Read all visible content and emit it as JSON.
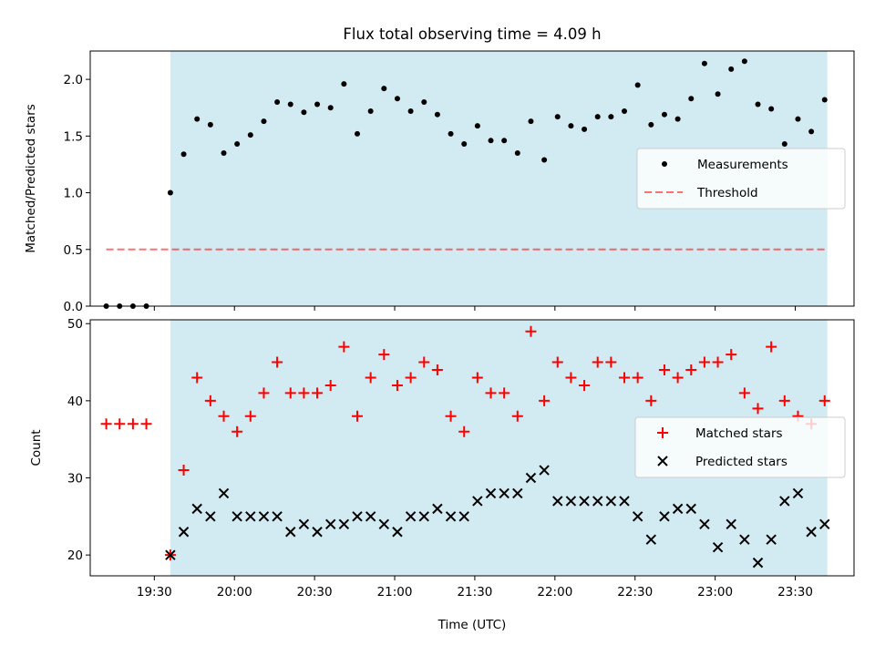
{
  "title": "Flux total observing time = 4.09 h",
  "xlabel": "Time (UTC)",
  "colors": {
    "shade": "#add8e6",
    "measurements": "#000000",
    "threshold": "#ff0000",
    "matched": "#ff0000",
    "predicted": "#000000"
  },
  "chart_data": [
    {
      "type": "scatter",
      "ylabel": "Matched/Predicted stars",
      "ylim": [
        0,
        2.25
      ],
      "yticks": [
        "0.0",
        "0.5",
        "1.0",
        "1.5",
        "2.0"
      ],
      "legend_position": "center-right",
      "shaded_interval": [
        "19:36",
        "23:42"
      ],
      "series": [
        {
          "name": "Measurements",
          "marker": "dot",
          "times": [
            "19:12",
            "19:17",
            "19:22",
            "19:27",
            "19:36",
            "19:41",
            "19:46",
            "19:51",
            "19:56",
            "20:01",
            "20:06",
            "20:11",
            "20:16",
            "20:21",
            "20:26",
            "20:31",
            "20:36",
            "20:41",
            "20:46",
            "20:51",
            "20:56",
            "21:01",
            "21:06",
            "21:11",
            "21:16",
            "21:21",
            "21:26",
            "21:31",
            "21:36",
            "21:41",
            "21:46",
            "21:51",
            "21:56",
            "22:01",
            "22:06",
            "22:11",
            "22:16",
            "22:21",
            "22:26",
            "22:31",
            "22:36",
            "22:41",
            "22:46",
            "22:51",
            "22:56",
            "23:01",
            "23:06",
            "23:11",
            "23:16",
            "23:21",
            "23:26",
            "23:31",
            "23:36",
            "23:41"
          ],
          "values": [
            0,
            0,
            0,
            0,
            1.0,
            1.34,
            1.65,
            1.6,
            1.35,
            1.43,
            1.51,
            1.63,
            1.8,
            1.78,
            1.71,
            1.78,
            1.75,
            1.96,
            1.52,
            1.72,
            1.92,
            1.83,
            1.72,
            1.8,
            1.69,
            1.52,
            1.43,
            1.59,
            1.46,
            1.46,
            1.35,
            1.63,
            1.29,
            1.67,
            1.59,
            1.56,
            1.67,
            1.67,
            1.72,
            1.95,
            1.6,
            1.69,
            1.65,
            1.83,
            2.14,
            1.87,
            2.09,
            2.16,
            1.78,
            1.74,
            1.43,
            1.65,
            1.54,
            1.82
          ]
        },
        {
          "name": "Threshold",
          "marker": "dashed-line",
          "times": [
            "19:12",
            "23:41"
          ],
          "values": [
            0.5,
            0.5
          ]
        }
      ]
    },
    {
      "type": "scatter",
      "ylabel": "Count",
      "ylim": [
        17.3,
        50.5
      ],
      "yticks": [
        "20",
        "30",
        "40",
        "50"
      ],
      "xticks": [
        "19:30",
        "20:00",
        "20:30",
        "21:00",
        "21:30",
        "22:00",
        "22:30",
        "23:00",
        "23:30"
      ],
      "legend_position": "center-right",
      "shaded_interval": [
        "19:36",
        "23:42"
      ],
      "series": [
        {
          "name": "Matched stars",
          "marker": "plus",
          "times": [
            "19:12",
            "19:17",
            "19:22",
            "19:27",
            "19:36",
            "19:41",
            "19:46",
            "19:51",
            "19:56",
            "20:01",
            "20:06",
            "20:11",
            "20:16",
            "20:21",
            "20:26",
            "20:31",
            "20:36",
            "20:41",
            "20:46",
            "20:51",
            "20:56",
            "21:01",
            "21:06",
            "21:11",
            "21:16",
            "21:21",
            "21:26",
            "21:31",
            "21:36",
            "21:41",
            "21:46",
            "21:51",
            "21:56",
            "22:01",
            "22:06",
            "22:11",
            "22:16",
            "22:21",
            "22:26",
            "22:31",
            "22:36",
            "22:41",
            "22:46",
            "22:51",
            "22:56",
            "23:01",
            "23:06",
            "23:11",
            "23:16",
            "23:21",
            "23:26",
            "23:31",
            "23:36",
            "23:41"
          ],
          "values": [
            37,
            37,
            37,
            37,
            20,
            31,
            43,
            40,
            38,
            36,
            38,
            41,
            45,
            41,
            41,
            41,
            42,
            47,
            38,
            43,
            46,
            42,
            43,
            45,
            44,
            38,
            36,
            43,
            41,
            41,
            38,
            49,
            40,
            45,
            43,
            42,
            45,
            45,
            43,
            43,
            40,
            44,
            43,
            44,
            45,
            45,
            46,
            41,
            39,
            47,
            40,
            38,
            37,
            40
          ]
        },
        {
          "name": "Predicted stars",
          "marker": "x",
          "times": [
            "19:36",
            "19:41",
            "19:46",
            "19:51",
            "19:56",
            "20:01",
            "20:06",
            "20:11",
            "20:16",
            "20:21",
            "20:26",
            "20:31",
            "20:36",
            "20:41",
            "20:46",
            "20:51",
            "20:56",
            "21:01",
            "21:06",
            "21:11",
            "21:16",
            "21:21",
            "21:26",
            "21:31",
            "21:36",
            "21:41",
            "21:46",
            "21:51",
            "21:56",
            "22:01",
            "22:06",
            "22:11",
            "22:16",
            "22:21",
            "22:26",
            "22:31",
            "22:36",
            "22:41",
            "22:46",
            "22:51",
            "22:56",
            "23:01",
            "23:06",
            "23:11",
            "23:16",
            "23:21",
            "23:26",
            "23:31",
            "23:36",
            "23:41"
          ],
          "values": [
            20,
            23,
            26,
            25,
            28,
            25,
            25,
            25,
            25,
            23,
            24,
            23,
            24,
            24,
            25,
            25,
            24,
            23,
            25,
            25,
            26,
            25,
            25,
            27,
            28,
            28,
            28,
            30,
            31,
            27,
            27,
            27,
            27,
            27,
            27,
            25,
            22,
            25,
            26,
            26,
            24,
            21,
            24,
            22,
            19,
            22,
            27,
            28,
            23,
            24
          ]
        }
      ]
    }
  ]
}
